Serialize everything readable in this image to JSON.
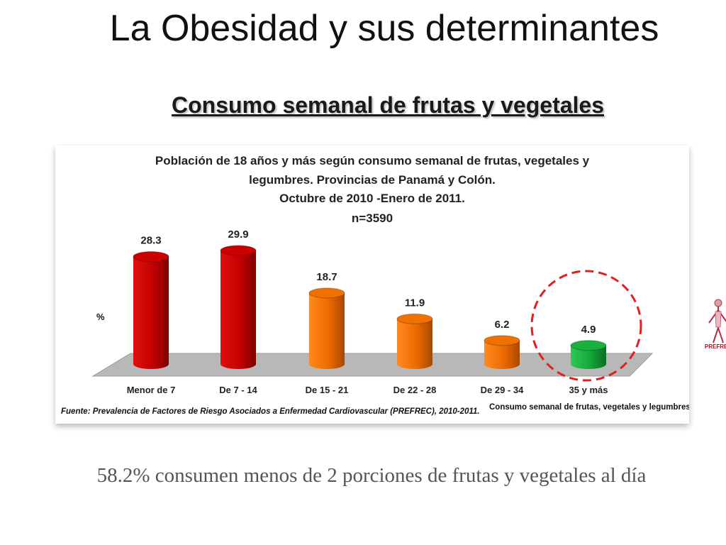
{
  "slide": {
    "title": "La Obesidad y sus determinantes",
    "subtitle": "Consumo semanal de frutas y vegetales",
    "conclusion": "58.2% consumen menos de 2 porciones de frutas  y vegetales al día"
  },
  "logo": {
    "text": "PREFREC"
  },
  "colors": {
    "red": "#cc0000",
    "orange": "#f07000",
    "green": "#19b040",
    "circle": "#e02020",
    "floor": "#b8b8b8"
  },
  "chart_data": {
    "type": "bar",
    "title": [
      "Población de 18 años y más según consumo semanal de frutas, vegetales y",
      "legumbres. Provincias de Panamá y Colón.",
      "Octubre de 2010 -Enero de 2011.",
      "n=3590"
    ],
    "ylabel": "%",
    "xlabel": "Consumo semanal de frutas, vegetales y legumbres",
    "source": "Fuente: Prevalencia de Factores de Riesgo Asociados a Enfermedad Cardiovascular (PREFREC), 2010-2011.",
    "categories": [
      "Menor de 7",
      "De 7 - 14",
      "De 15 - 21",
      "De 22 - 28",
      "De 29 - 34",
      "35 y más"
    ],
    "values": [
      28.3,
      29.9,
      18.7,
      11.9,
      6.2,
      4.9
    ],
    "value_labels": [
      "28.3",
      "29.9",
      "18.7",
      "11.9",
      "6.2",
      "4.9"
    ],
    "bar_colors": [
      "red",
      "red",
      "orange",
      "orange",
      "orange",
      "green"
    ],
    "highlighted": "35 y más",
    "ylim": [
      0,
      35
    ],
    "grid": false,
    "legend": "none"
  }
}
